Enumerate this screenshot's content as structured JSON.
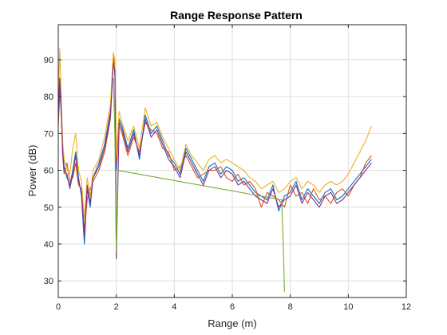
{
  "chart_data": {
    "type": "line",
    "title": "Range Response Pattern",
    "xlabel": "Range (m)",
    "ylabel": "Power (dB)",
    "xlim": [
      0,
      12
    ],
    "ylim": [
      25.5,
      99.5
    ],
    "xticks": [
      "0",
      "2",
      "4",
      "6",
      "8",
      "10",
      "12"
    ],
    "yticks": [
      "30",
      "40",
      "50",
      "60",
      "70",
      "80",
      "90"
    ],
    "grid": true,
    "legend": "none",
    "series_colors": [
      "#0072BD",
      "#D95319",
      "#EDB120",
      "#7E2F8E",
      "#77AC30"
    ],
    "series": [
      {
        "x": [
          0.0,
          0.05,
          0.1,
          0.15,
          0.2,
          0.3,
          0.4,
          0.5,
          0.6,
          0.7,
          0.8,
          0.9,
          1.0,
          1.1,
          1.2,
          1.4,
          1.6,
          1.8,
          1.9,
          1.95,
          2.0,
          2.1,
          2.2,
          2.4,
          2.6,
          2.8,
          3.0,
          3.2,
          3.4,
          3.6,
          3.8,
          4.0,
          4.2,
          4.4,
          4.6,
          4.8,
          5.0,
          5.2,
          5.4,
          5.6,
          5.8,
          6.0,
          6.2,
          6.4,
          6.6,
          6.8,
          7.0,
          7.2,
          7.4,
          7.6,
          7.8,
          8.0,
          8.2,
          8.4,
          8.6,
          8.8,
          9.0,
          9.2,
          9.4,
          9.6,
          9.8,
          10.0,
          10.2,
          10.4,
          10.6,
          10.8
        ],
        "values": [
          74,
          83,
          76,
          66,
          61,
          58,
          56,
          60,
          65,
          58,
          53,
          40,
          55,
          50,
          58,
          62,
          67,
          76,
          90,
          86,
          60,
          74,
          72,
          66,
          71,
          63,
          75,
          70,
          72,
          68,
          64,
          62,
          59,
          66,
          63,
          60,
          57,
          61,
          62,
          59,
          61,
          60,
          57,
          58,
          56,
          54,
          53,
          52,
          56,
          49,
          53,
          54,
          57,
          52,
          55,
          53,
          51,
          54,
          55,
          52,
          53,
          55,
          57,
          59,
          61,
          63
        ]
      },
      {
        "x": [
          0.0,
          0.05,
          0.1,
          0.15,
          0.2,
          0.3,
          0.4,
          0.5,
          0.6,
          0.7,
          0.8,
          0.9,
          1.0,
          1.1,
          1.2,
          1.4,
          1.6,
          1.8,
          1.9,
          1.95,
          2.0,
          2.1,
          2.2,
          2.4,
          2.6,
          2.8,
          3.0,
          3.2,
          3.4,
          3.6,
          3.8,
          4.0,
          4.2,
          4.4,
          4.6,
          4.8,
          5.0,
          5.2,
          5.4,
          5.6,
          5.8,
          6.0,
          6.2,
          6.4,
          6.6,
          6.8,
          7.0,
          7.2,
          7.4,
          7.6,
          7.8,
          8.0,
          8.2,
          8.4,
          8.6,
          8.8,
          9.0,
          9.2,
          9.4,
          9.6,
          9.8,
          10.0,
          10.2,
          10.4,
          10.6,
          10.8
        ],
        "values": [
          72,
          80,
          78,
          64,
          59,
          62,
          57,
          58,
          62,
          56,
          55,
          44,
          52,
          55,
          57,
          60,
          65,
          74,
          91,
          88,
          62,
          72,
          70,
          64,
          69,
          65,
          73,
          71,
          70,
          66,
          65,
          60,
          61,
          64,
          61,
          58,
          59,
          60,
          60,
          61,
          58,
          57,
          59,
          56,
          57,
          55,
          50,
          54,
          53,
          52,
          50,
          56,
          53,
          54,
          51,
          55,
          52,
          53,
          51,
          54,
          55,
          53,
          56,
          58,
          62,
          64
        ]
      },
      {
        "x": [
          0.0,
          0.05,
          0.1,
          0.15,
          0.2,
          0.3,
          0.4,
          0.5,
          0.6,
          0.7,
          0.8,
          0.9,
          1.0,
          1.1,
          1.2,
          1.4,
          1.6,
          1.8,
          1.9,
          1.95,
          2.0,
          2.1,
          2.2,
          2.4,
          2.6,
          2.8,
          3.0,
          3.2,
          3.4,
          3.6,
          3.8,
          4.0,
          4.2,
          4.4,
          4.6,
          4.8,
          5.0,
          5.2,
          5.4,
          5.6,
          5.8,
          6.0,
          6.2,
          6.4,
          6.6,
          6.8,
          7.0,
          7.2,
          7.4,
          7.6,
          7.8,
          8.0,
          8.2,
          8.4,
          8.6,
          8.8,
          9.0,
          9.2,
          9.4,
          9.6,
          9.8,
          10.0,
          10.2,
          10.4,
          10.6,
          10.8
        ],
        "values": [
          78,
          93,
          80,
          68,
          63,
          60,
          59,
          66,
          70,
          60,
          57,
          47,
          58,
          53,
          60,
          63,
          69,
          78,
          92,
          90,
          64,
          76,
          73,
          68,
          72,
          66,
          77,
          72,
          73,
          69,
          66,
          63,
          60,
          67,
          64,
          62,
          60,
          63,
          64,
          62,
          63,
          62,
          61,
          60,
          58,
          57,
          55,
          56,
          57,
          54,
          55,
          57,
          58,
          55,
          57,
          56,
          54,
          56,
          57,
          56,
          57,
          59,
          62,
          65,
          68,
          72
        ]
      },
      {
        "x": [
          0.0,
          0.05,
          0.1,
          0.15,
          0.2,
          0.3,
          0.4,
          0.5,
          0.6,
          0.7,
          0.8,
          0.9,
          1.0,
          1.1,
          1.2,
          1.4,
          1.6,
          1.8,
          1.9,
          1.95,
          2.0,
          2.1,
          2.2,
          2.4,
          2.6,
          2.8,
          3.0,
          3.2,
          3.4,
          3.6,
          3.8,
          4.0,
          4.2,
          4.4,
          4.6,
          4.8,
          5.0,
          5.2,
          5.4,
          5.6,
          5.8,
          6.0,
          6.2,
          6.4,
          6.6,
          6.8,
          7.0,
          7.2,
          7.4,
          7.6,
          7.8,
          8.0,
          8.2,
          8.4,
          8.6,
          8.8,
          9.0,
          9.2,
          9.4,
          9.6,
          9.8,
          10.0,
          10.2,
          10.4,
          10.6,
          10.8
        ],
        "values": [
          75,
          85,
          77,
          65,
          60,
          59,
          55,
          59,
          64,
          57,
          54,
          42,
          56,
          51,
          58,
          61,
          66,
          75,
          89,
          87,
          36,
          73,
          71,
          65,
          70,
          64,
          74,
          69,
          71,
          67,
          63,
          61,
          58,
          65,
          62,
          59,
          56,
          60,
          61,
          58,
          60,
          59,
          56,
          57,
          55,
          53,
          52,
          51,
          55,
          50,
          52,
          53,
          56,
          51,
          54,
          52,
          50,
          53,
          54,
          51,
          52,
          54,
          56,
          58,
          60,
          62
        ]
      },
      {
        "x": [
          1.9,
          1.95,
          2.0,
          2.05,
          7.7,
          7.75,
          7.8
        ],
        "values": [
          85,
          70,
          38,
          60,
          52,
          42,
          27
        ]
      }
    ]
  }
}
